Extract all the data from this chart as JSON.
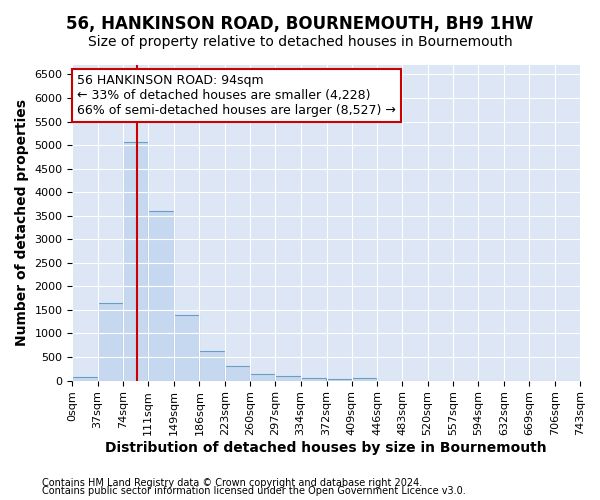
{
  "title": "56, HANKINSON ROAD, BOURNEMOUTH, BH9 1HW",
  "subtitle": "Size of property relative to detached houses in Bournemouth",
  "xlabel": "Distribution of detached houses by size in Bournemouth",
  "ylabel": "Number of detached properties",
  "footer1": "Contains HM Land Registry data © Crown copyright and database right 2024.",
  "footer2": "Contains public sector information licensed under the Open Government Licence v3.0.",
  "bin_edges": [
    0,
    37,
    74,
    111,
    149,
    186,
    223,
    260,
    297,
    334,
    372,
    409,
    446,
    483,
    520,
    557,
    594,
    632,
    669,
    706,
    743
  ],
  "bar_heights": [
    75,
    1650,
    5075,
    3600,
    1400,
    620,
    310,
    140,
    90,
    50,
    40,
    60,
    0,
    0,
    0,
    0,
    0,
    0,
    0,
    0
  ],
  "bar_color": "#c5d8ef",
  "bar_edge_color": "#6a9ec5",
  "property_size": 94,
  "property_label": "56 HANKINSON ROAD: 94sqm",
  "annotation_line1": "← 33% of detached houses are smaller (4,228)",
  "annotation_line2": "66% of semi-detached houses are larger (8,527) →",
  "vline_color": "#cc0000",
  "annotation_box_facecolor": "#ffffff",
  "annotation_box_edgecolor": "#cc0000",
  "ylim": [
    0,
    6700
  ],
  "yticks": [
    0,
    500,
    1000,
    1500,
    2000,
    2500,
    3000,
    3500,
    4000,
    4500,
    5000,
    5500,
    6000,
    6500
  ],
  "bg_color": "#dce6f5",
  "grid_color": "#ffffff",
  "title_fontsize": 12,
  "subtitle_fontsize": 10,
  "axis_label_fontsize": 10,
  "tick_fontsize": 8,
  "annotation_fontsize": 9,
  "footer_fontsize": 7
}
